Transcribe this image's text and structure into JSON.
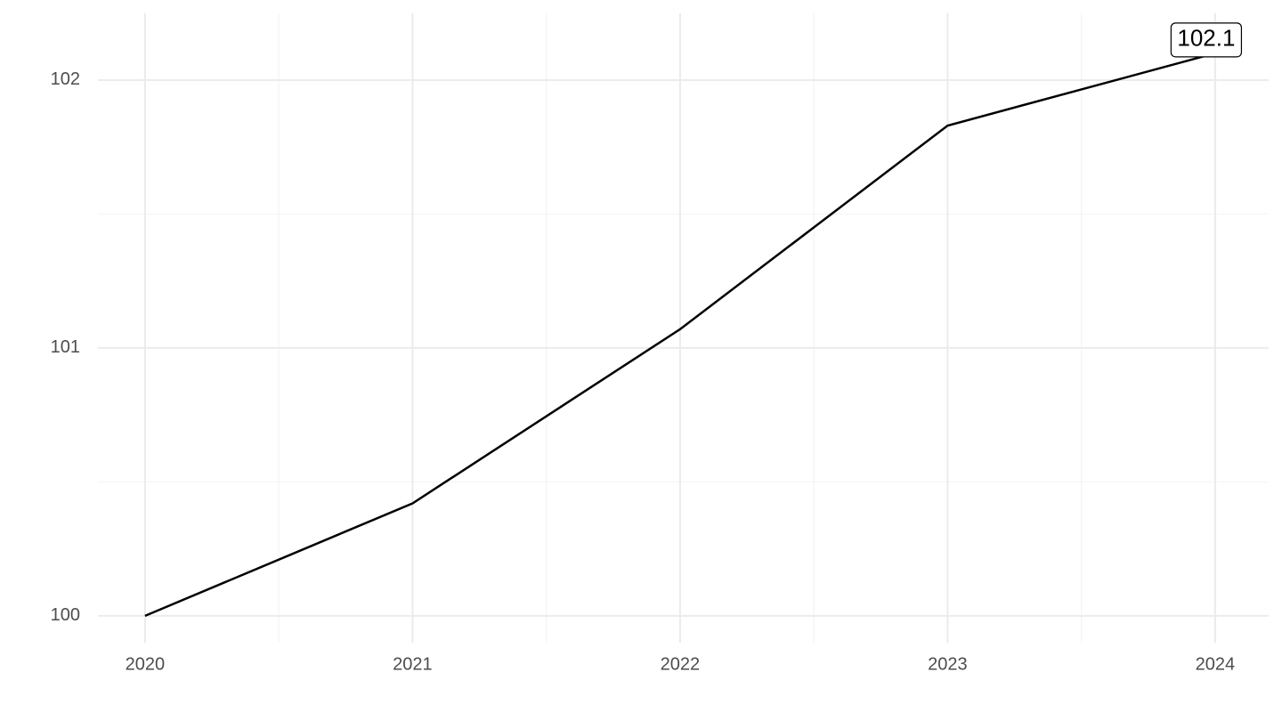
{
  "chart_data": {
    "type": "line",
    "x": [
      2020,
      2021,
      2022,
      2023,
      2024
    ],
    "series": [
      {
        "color": "#000000",
        "values": [
          100,
          100.42,
          101.07,
          101.83,
          102.1
        ]
      }
    ],
    "xlim": [
      2019.824,
      2024.2
    ],
    "xticks": [
      2020,
      2021,
      2022,
      2023,
      2024
    ],
    "ylim": [
      99.9,
      102.249
    ],
    "yticks": [
      100,
      101,
      102
    ],
    "grid": true
  }
}
